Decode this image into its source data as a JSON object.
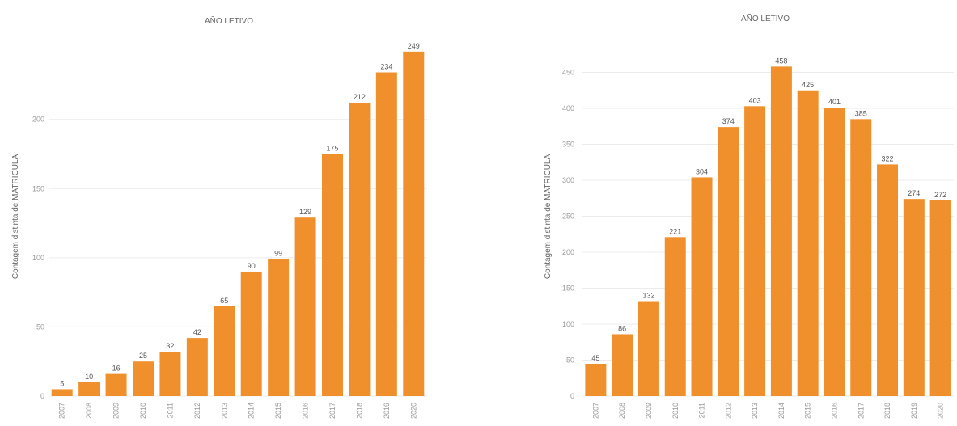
{
  "chart_data": [
    {
      "type": "bar",
      "title": "AÑO LETIVO",
      "ylabel": "Contagem distinta de MATRICULA",
      "xlabel": "",
      "categories": [
        "2007",
        "2008",
        "2009",
        "2010",
        "2011",
        "2012",
        "2013",
        "2014",
        "2015",
        "2016",
        "2017",
        "2018",
        "2019",
        "2020"
      ],
      "values": [
        5,
        10,
        16,
        25,
        32,
        42,
        65,
        90,
        99,
        129,
        175,
        212,
        234,
        249
      ],
      "data_labels": [
        "5",
        "10",
        "16",
        "25",
        "32",
        "42",
        "65",
        "90",
        "99",
        "129",
        "175",
        "212",
        "234",
        "249"
      ],
      "yticks": [
        0,
        50,
        100,
        150,
        200
      ],
      "ylim": [
        0,
        260
      ],
      "bar_color": "#f0902c",
      "grid": true,
      "legend": "none"
    },
    {
      "type": "bar",
      "title": "AÑO LETIVO",
      "ylabel": "Contagem distinta de MATRICULA",
      "xlabel": "",
      "categories": [
        "2007",
        "2008",
        "2009",
        "2010",
        "2011",
        "2012",
        "2013",
        "2014",
        "2015",
        "2016",
        "2017",
        "2018",
        "2019",
        "2020"
      ],
      "values": [
        45,
        86,
        132,
        221,
        304,
        374,
        403,
        458,
        425,
        401,
        385,
        322,
        274,
        272
      ],
      "data_labels": [
        "45",
        "86",
        "132",
        "221",
        "304",
        "374",
        "403",
        "458",
        "425",
        "401",
        "385",
        "322",
        "274",
        "272"
      ],
      "yticks": [
        0,
        50,
        100,
        150,
        200,
        250,
        300,
        350,
        400,
        450
      ],
      "ylim": [
        0,
        500
      ],
      "bar_color": "#f0902c",
      "grid": true,
      "legend": "none"
    }
  ]
}
